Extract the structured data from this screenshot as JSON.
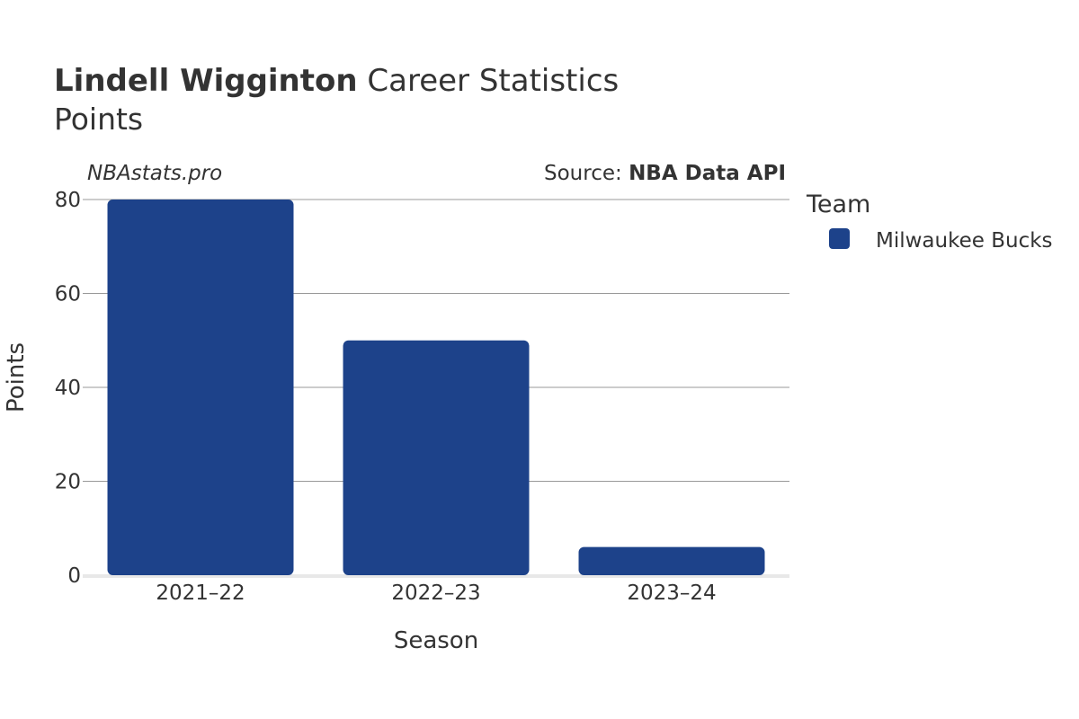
{
  "title": {
    "player": "Lindell Wigginton",
    "suffix": " Career Statistics",
    "subtitle": "Points"
  },
  "watermark": "NBAstats.pro",
  "source": {
    "prefix": "Source: ",
    "name": "NBA Data API"
  },
  "colors": {
    "bar": "#1d428a",
    "grid": "#999999",
    "baseline": "#e8e8e8",
    "text": "#333333"
  },
  "chart_data": {
    "type": "bar",
    "categories": [
      "2021–22",
      "2022–23",
      "2023–24"
    ],
    "series": [
      {
        "name": "Milwaukee Bucks",
        "values": [
          80,
          50,
          6
        ],
        "color": "#1d428a"
      }
    ],
    "xlabel": "Season",
    "ylabel": "Points",
    "ylim": [
      0,
      80
    ],
    "yticks": [
      0,
      20,
      40,
      60,
      80
    ],
    "grid": true,
    "legend": {
      "title": "Team",
      "placement": "right"
    }
  }
}
